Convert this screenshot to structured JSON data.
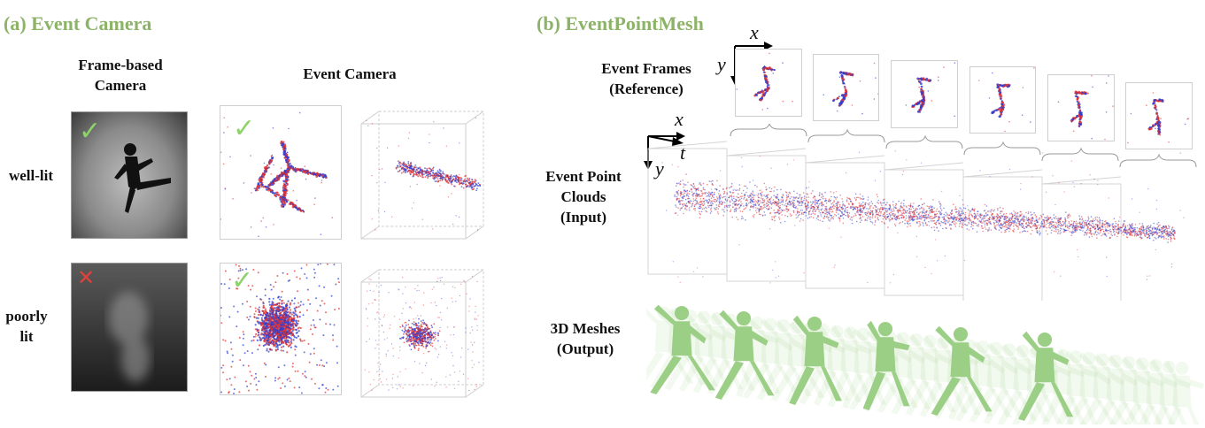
{
  "section_a": {
    "title": "(a) Event Camera",
    "frame_based_label": "Frame-based\nCamera",
    "event_camera_label": "Event Camera",
    "row_labels": [
      "well-lit",
      "poorly\nlit"
    ],
    "marks": [
      "✓",
      "✕",
      "✓",
      "✓"
    ]
  },
  "section_b": {
    "title": "(b) EventPointMesh",
    "event_frames_label": "Event Frames\n(Reference)",
    "point_clouds_label": "Event Point\nClouds\n(Input)",
    "meshes_label": "3D Meshes\n(Output)",
    "axis_x": "x",
    "axis_y": "y",
    "axis_t": "t"
  },
  "colors": {
    "title_green": "#8cb368",
    "check_green": "#8fd16a",
    "cross_red": "#e0413a",
    "event_red": "#e03030",
    "event_blue": "#2f3fd0",
    "mesh_green": "#9ccf86"
  }
}
